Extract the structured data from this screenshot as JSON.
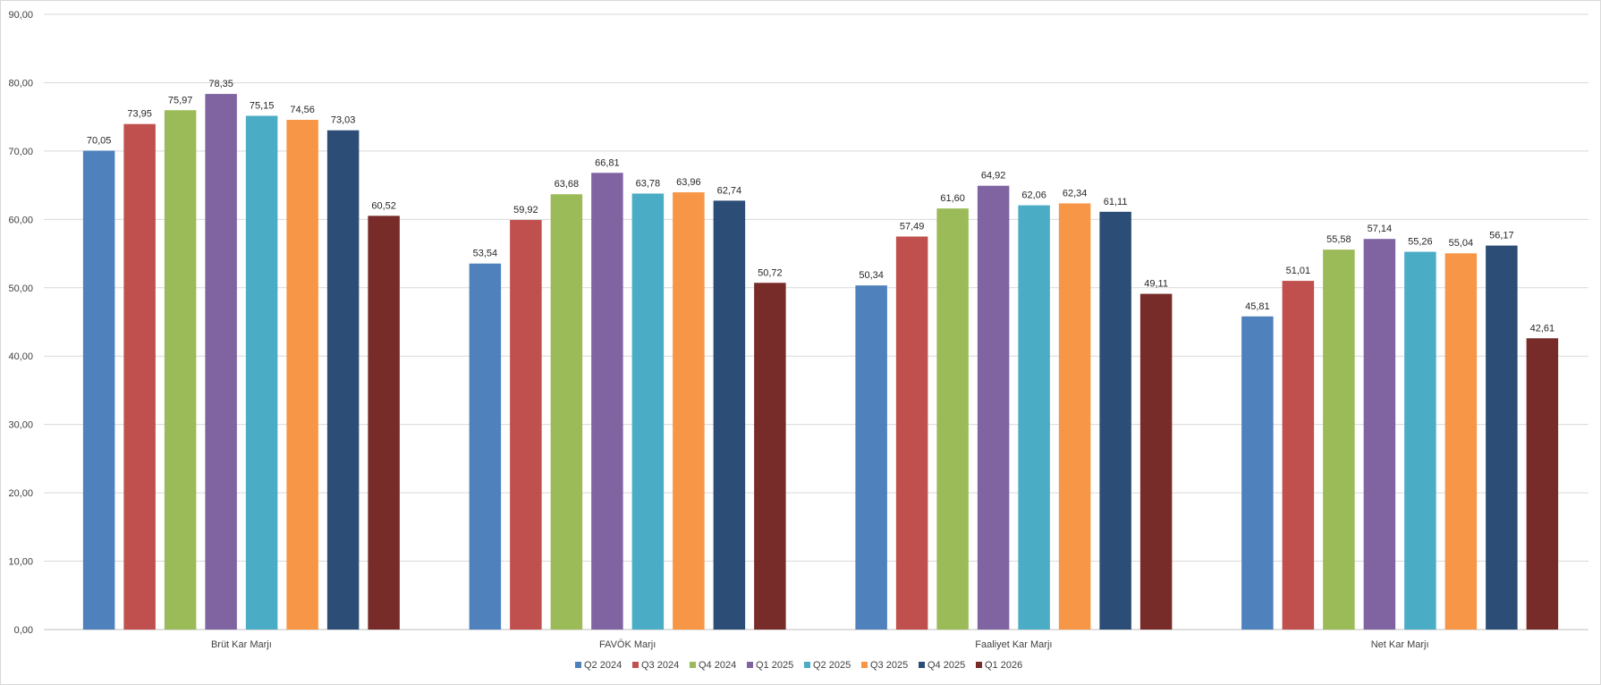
{
  "chart_data": {
    "type": "bar",
    "title": "",
    "xlabel": "",
    "ylabel": "",
    "categories": [
      "Brüt Kar Marjı",
      "FAVÖK Marjı",
      "Faaliyet Kar Marjı",
      "Net Kar Marjı"
    ],
    "ylim": [
      0,
      90
    ],
    "y_ticks": [
      "0,00",
      "10,00",
      "20,00",
      "30,00",
      "40,00",
      "50,00",
      "60,00",
      "70,00",
      "80,00",
      "90,00"
    ],
    "grid": "horizontal",
    "legend_position": "bottom",
    "series": [
      {
        "name": "Q2 2024",
        "color": "#4F81BD",
        "values": [
          70.05,
          53.54,
          50.34,
          45.81
        ],
        "labels": [
          "70,05",
          "53,54",
          "50,34",
          "45,81"
        ]
      },
      {
        "name": "Q3 2024",
        "color": "#C0504D",
        "values": [
          73.95,
          59.92,
          57.49,
          51.01
        ],
        "labels": [
          "73,95",
          "59,92",
          "57,49",
          "51,01"
        ]
      },
      {
        "name": "Q4 2024",
        "color": "#9BBB59",
        "values": [
          75.97,
          63.68,
          61.6,
          55.58
        ],
        "labels": [
          "75,97",
          "63,68",
          "61,60",
          "55,58"
        ]
      },
      {
        "name": "Q1 2025",
        "color": "#8064A2",
        "values": [
          78.35,
          66.81,
          64.92,
          57.14
        ],
        "labels": [
          "78,35",
          "66,81",
          "64,92",
          "57,14"
        ]
      },
      {
        "name": "Q2 2025",
        "color": "#4BACC6",
        "values": [
          75.15,
          63.78,
          62.06,
          55.26
        ],
        "labels": [
          "75,15",
          "63,78",
          "62,06",
          "55,26"
        ]
      },
      {
        "name": "Q3 2025",
        "color": "#F79646",
        "values": [
          74.56,
          63.96,
          62.34,
          55.04
        ],
        "labels": [
          "74,56",
          "63,96",
          "62,34",
          "55,04"
        ]
      },
      {
        "name": "Q4 2025",
        "color": "#2C4D75",
        "values": [
          73.03,
          62.74,
          61.11,
          56.17
        ],
        "labels": [
          "73,03",
          "62,74",
          "61,11",
          "56,17"
        ]
      },
      {
        "name": "Q1 2026",
        "color": "#772C2A",
        "values": [
          60.52,
          50.72,
          49.11,
          42.61
        ],
        "labels": [
          "60,52",
          "50,72",
          "49,11",
          "42,61"
        ]
      }
    ]
  }
}
